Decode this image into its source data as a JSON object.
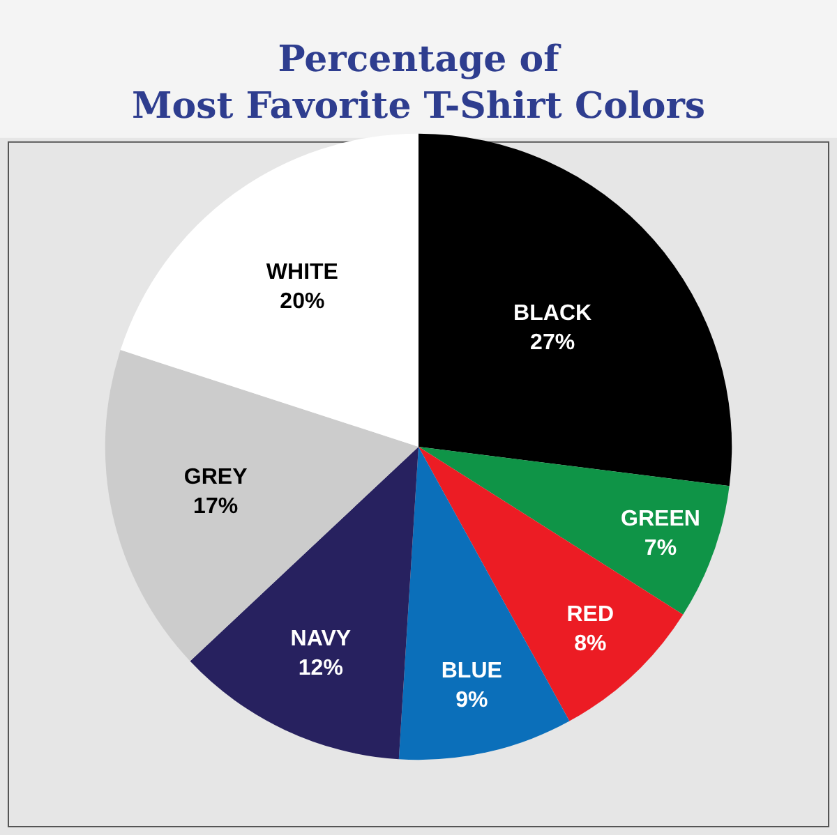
{
  "chart_data": {
    "type": "pie",
    "title": "Percentage of\nMost Favorite T-Shirt Colors",
    "categories": [
      "BLACK",
      "GREEN",
      "RED",
      "BLUE",
      "NAVY",
      "GREY",
      "WHITE"
    ],
    "values": [
      27,
      7,
      8,
      9,
      12,
      17,
      20
    ],
    "value_labels": [
      "27%",
      "7%",
      "8%",
      "9%",
      "12%",
      "17%",
      "20%"
    ],
    "colors": [
      "#000000",
      "#0f9447",
      "#ec1c24",
      "#0b6fba",
      "#27215f",
      "#cccccc",
      "#ffffff"
    ],
    "legend": false
  }
}
